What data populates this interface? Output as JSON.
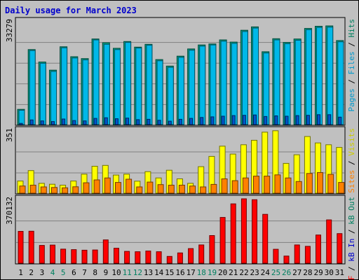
{
  "chart_data": {
    "title": "Daily usage for March 2023",
    "type": "bar",
    "days": [
      "1",
      "2",
      "3",
      "4",
      "5",
      "6",
      "7",
      "8",
      "9",
      "10",
      "11",
      "12",
      "13",
      "14",
      "15",
      "16",
      "17",
      "18",
      "19",
      "20",
      "21",
      "22",
      "23",
      "24",
      "25",
      "26",
      "27",
      "28",
      "29",
      "30",
      "31"
    ],
    "weekend_days": [
      "4",
      "5",
      "11",
      "12",
      "18",
      "19",
      "25",
      "26"
    ],
    "panels": [
      {
        "name": "traffic",
        "ymax_label": "33279",
        "ymax": 33279,
        "legend": [
          {
            "text": "Pages",
            "color": "#0099cc"
          },
          {
            "text": " / ",
            "color": "#000000"
          },
          {
            "text": "Files",
            "color": "#0099cc"
          },
          {
            "text": " / ",
            "color": "#000000"
          },
          {
            "text": "Hits",
            "color": "#008060"
          }
        ],
        "series": [
          {
            "name": "Hits",
            "color": "#00a080",
            "values": [
              4900,
              24100,
              20100,
              17500,
              25000,
              21800,
              21200,
              27500,
              26300,
              24500,
              26700,
              24900,
              25800,
              20900,
              18800,
              22000,
              24300,
              25600,
              25900,
              27200,
              26500,
              30300,
              31400,
              23400,
              27600,
              26400,
              27500,
              30900,
              31600,
              31700,
              27000
            ]
          },
          {
            "name": "Files",
            "color": "#00b8e8",
            "values": [
              4600,
              23800,
              19700,
              17100,
              24700,
              21400,
              20800,
              27200,
              25800,
              24100,
              26400,
              24600,
              25500,
              20500,
              18400,
              21600,
              23900,
              25200,
              25600,
              26800,
              26100,
              29900,
              31000,
              23000,
              27200,
              26000,
              27100,
              30500,
              31200,
              31300,
              26600
            ]
          },
          {
            "name": "Pages",
            "color": "#0055cc",
            "values": [
              400,
              1500,
              1200,
              1000,
              1800,
              1300,
              1200,
              2000,
              2200,
              1900,
              2100,
              1600,
              1700,
              1400,
              1100,
              1700,
              2000,
              2300,
              2500,
              2700,
              2900,
              3000,
              3100,
              2600,
              2800,
              2700,
              2900,
              3000,
              3200,
              3200,
              2400
            ]
          }
        ]
      },
      {
        "name": "visits",
        "ymax_label": "351",
        "ymax": 351,
        "legend": [
          {
            "text": "Sites",
            "color": "#ff8000"
          },
          {
            "text": " / ",
            "color": "#000000"
          },
          {
            "text": "Visits",
            "color": "#cccc00"
          }
        ],
        "series": [
          {
            "name": "Visits",
            "color": "#ffff00",
            "values": [
              68,
              126,
              55,
              50,
              45,
              68,
              106,
              150,
              155,
              101,
              106,
              67,
              120,
              85,
              128,
              80,
              55,
              148,
              205,
              262,
              218,
              270,
              295,
              340,
              348,
              166,
              214,
              316,
              280,
              270,
              255
            ]
          },
          {
            "name": "Sites",
            "color": "#ff8000",
            "values": [
              40,
              45,
              35,
              32,
              30,
              36,
              58,
              74,
              85,
              60,
              78,
              35,
              62,
              48,
              45,
              45,
              40,
              35,
              49,
              80,
              70,
              85,
              95,
              95,
              102,
              85,
              65,
              110,
              115,
              105,
              60
            ]
          }
        ]
      },
      {
        "name": "kbytes",
        "ymax_label": "370132",
        "ymax": 370132,
        "legend": [
          {
            "text": "kB F",
            "color": "#ff0000"
          },
          {
            "text": " / ",
            "color": "#000000"
          },
          {
            "text": "kB In",
            "color": "#0000cc"
          },
          {
            "text": " / ",
            "color": "#000000"
          },
          {
            "text": "kB Out",
            "color": "#008060"
          }
        ],
        "series": [
          {
            "name": "kB F",
            "color": "#ff0000",
            "values": [
              183000,
              184000,
              102000,
              104000,
              81000,
              78000,
              75000,
              76000,
              134000,
              86000,
              68000,
              66000,
              70000,
              66000,
              39000,
              59000,
              84000,
              105000,
              159000,
              263000,
              341000,
              370000,
              365000,
              281000,
              80000,
              41000,
              105000,
              97000,
              162000,
              249000,
              170000
            ]
          }
        ]
      }
    ]
  }
}
